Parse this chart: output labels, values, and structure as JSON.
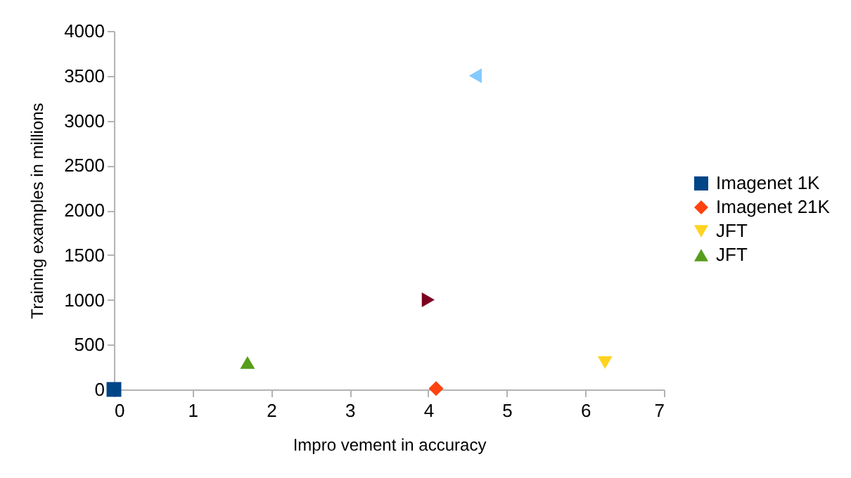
{
  "chart_data": {
    "type": "scatter",
    "xlabel": "Impro vement in accuracy",
    "ylabel": "Training examples in millions",
    "xlim": [
      0,
      7
    ],
    "xticks": [
      0,
      1,
      2,
      3,
      4,
      5,
      6,
      7
    ],
    "ylim": [
      0,
      4000
    ],
    "yticks": [
      0,
      500,
      1000,
      1500,
      2000,
      2500,
      3000,
      3500,
      4000
    ],
    "grid": false,
    "legend": "right",
    "series": [
      {
        "name": "Imagenet 1K",
        "color": "#004586",
        "marker": "square",
        "x": [
          0
        ],
        "values": [
          0
        ]
      },
      {
        "name": "Imagenet 21K",
        "color": "#ff420e",
        "marker": "diamond",
        "x": [
          4.1
        ],
        "values": [
          10
        ]
      },
      {
        "name": "JFT",
        "color": "#ffd320",
        "marker": "triangle-down",
        "x": [
          6.25
        ],
        "values": [
          300
        ]
      },
      {
        "name": "JFT",
        "color": "#579d1c",
        "marker": "triangle",
        "x": [
          1.7
        ],
        "values": [
          300
        ]
      },
      {
        "color": "#7e0021",
        "marker": "triangle-right",
        "x": [
          4
        ],
        "values": [
          1000
        ]
      },
      {
        "color": "#83caff",
        "marker": "triangle-left",
        "x": [
          4.6
        ],
        "values": [
          3500
        ]
      }
    ]
  }
}
